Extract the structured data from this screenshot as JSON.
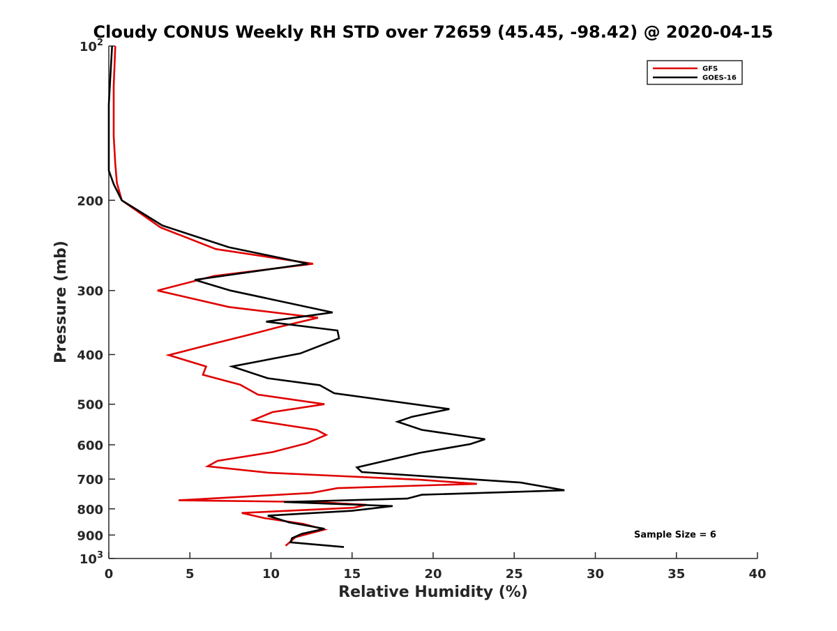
{
  "chart_data": {
    "type": "line",
    "title": "Cloudy CONUS Weekly RH STD over 72659 (45.45, -98.42) @ 2020-04-15",
    "xlabel": "Relative Humidity (%)",
    "ylabel": "Pressure (mb)",
    "xlim": [
      0,
      40
    ],
    "ylim": [
      100,
      1000
    ],
    "y_scale": "log",
    "y_reversed": true,
    "grid": false,
    "legend_position": "top-right",
    "annotation": "Sample Size = 6",
    "x_ticks": [
      "0",
      "5",
      "10",
      "15",
      "20",
      "25",
      "30",
      "35",
      "40"
    ],
    "y_ticks": [
      {
        "value": 100,
        "base": "10",
        "sup": "2"
      },
      {
        "value": 200,
        "base": "200",
        "sup": ""
      },
      {
        "value": 300,
        "base": "300",
        "sup": ""
      },
      {
        "value": 400,
        "base": "400",
        "sup": ""
      },
      {
        "value": 500,
        "base": "500",
        "sup": ""
      },
      {
        "value": 600,
        "base": "600",
        "sup": ""
      },
      {
        "value": 700,
        "base": "700",
        "sup": ""
      },
      {
        "value": 800,
        "base": "800",
        "sup": ""
      },
      {
        "value": 900,
        "base": "900",
        "sup": ""
      },
      {
        "value": 1000,
        "base": "10",
        "sup": "3"
      }
    ],
    "series": [
      {
        "name": "GFS",
        "color": "#e00000",
        "points": [
          [
            0.4,
            100
          ],
          [
            0.3,
            120
          ],
          [
            0.3,
            150
          ],
          [
            0.4,
            170
          ],
          [
            0.5,
            185
          ],
          [
            0.8,
            200
          ],
          [
            3.2,
            226
          ],
          [
            6.6,
            249
          ],
          [
            12.6,
            266
          ],
          [
            6.5,
            281
          ],
          [
            3.0,
            300
          ],
          [
            7.4,
            323
          ],
          [
            12.9,
            339
          ],
          [
            10.4,
            354
          ],
          [
            8.8,
            365
          ],
          [
            6.3,
            382
          ],
          [
            3.7,
            401
          ],
          [
            6.0,
            422
          ],
          [
            5.8,
            438
          ],
          [
            8.1,
            458
          ],
          [
            9.2,
            479
          ],
          [
            13.3,
            500
          ],
          [
            10.1,
            518
          ],
          [
            8.9,
            537
          ],
          [
            12.8,
            561
          ],
          [
            13.4,
            574
          ],
          [
            12.2,
            596
          ],
          [
            10.1,
            620
          ],
          [
            6.7,
            645
          ],
          [
            6.1,
            661
          ],
          [
            9.8,
            680
          ],
          [
            19.2,
            702
          ],
          [
            22.7,
            715
          ],
          [
            14.1,
            729
          ],
          [
            12.5,
            745
          ],
          [
            4.3,
            770
          ],
          [
            12.8,
            776
          ],
          [
            15.9,
            786
          ],
          [
            15.1,
            796
          ],
          [
            8.2,
            815
          ],
          [
            9.6,
            834
          ],
          [
            12.0,
            856
          ],
          [
            13.3,
            878
          ],
          [
            11.5,
            909
          ],
          [
            11.0,
            939
          ],
          [
            10.9,
            944
          ]
        ]
      },
      {
        "name": "GOES-16",
        "color": "#000000",
        "points": [
          [
            0.2,
            100
          ],
          [
            0.0,
            130
          ],
          [
            0.0,
            175
          ],
          [
            0.3,
            186
          ],
          [
            0.8,
            200
          ],
          [
            3.3,
            224
          ],
          [
            7.4,
            247
          ],
          [
            12.3,
            266
          ],
          [
            5.3,
            286
          ],
          [
            7.5,
            300
          ],
          [
            13.8,
            331
          ],
          [
            9.7,
            345
          ],
          [
            14.1,
            359
          ],
          [
            14.2,
            372
          ],
          [
            11.8,
            398
          ],
          [
            7.6,
            422
          ],
          [
            9.8,
            445
          ],
          [
            13.0,
            459
          ],
          [
            13.9,
            476
          ],
          [
            21.0,
            511
          ],
          [
            18.7,
            529
          ],
          [
            17.8,
            541
          ],
          [
            19.3,
            561
          ],
          [
            23.2,
            585
          ],
          [
            22.3,
            598
          ],
          [
            19.2,
            622
          ],
          [
            15.3,
            664
          ],
          [
            15.6,
            678
          ],
          [
            25.4,
            711
          ],
          [
            28.1,
            736
          ],
          [
            19.3,
            751
          ],
          [
            18.4,
            764
          ],
          [
            10.8,
            776
          ],
          [
            17.5,
            790
          ],
          [
            15.0,
            807
          ],
          [
            9.8,
            825
          ],
          [
            11.1,
            850
          ],
          [
            13.3,
            875
          ],
          [
            11.9,
            895
          ],
          [
            11.3,
            913
          ],
          [
            11.2,
            930
          ],
          [
            14.5,
            950
          ]
        ]
      }
    ]
  }
}
